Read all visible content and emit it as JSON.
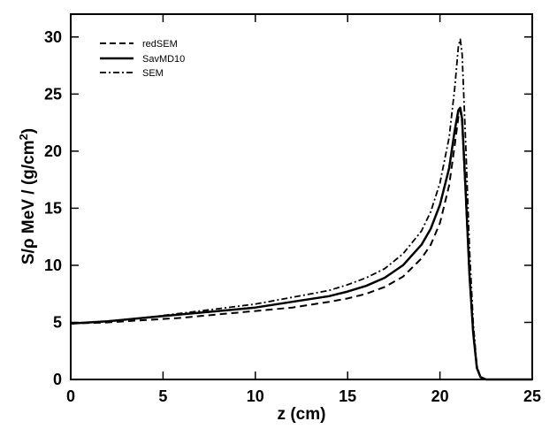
{
  "chart_data": {
    "type": "line",
    "title": "",
    "xlabel": "z  (cm)",
    "ylabel_main": "S/ρ  MeV / (g/cm",
    "ylabel_sup": "2",
    "ylabel_close": ")",
    "xlim": [
      0,
      25
    ],
    "ylim": [
      0,
      32
    ],
    "xticks": [
      0,
      5,
      10,
      15,
      20,
      25
    ],
    "yticks": [
      0,
      5,
      10,
      15,
      20,
      25,
      30
    ],
    "xtick_labels": [
      "0",
      "5",
      "10",
      "15",
      "20",
      "25"
    ],
    "ytick_labels": [
      "0",
      "5",
      "10",
      "15",
      "20",
      "25",
      "30"
    ],
    "grid": false,
    "legend_position": "top-left",
    "series": [
      {
        "name": "redSEM",
        "dash": "dashed",
        "x": [
          0,
          2,
          4,
          6,
          8,
          10,
          12,
          14,
          15,
          16,
          17,
          18,
          19,
          19.5,
          20,
          20.5,
          20.8,
          21.0,
          21.1,
          21.2,
          21.4,
          21.6,
          21.8,
          22.0,
          22.2,
          22.5,
          25
        ],
        "y": [
          4.9,
          5.0,
          5.2,
          5.4,
          5.7,
          6.0,
          6.3,
          6.8,
          7.1,
          7.5,
          8.1,
          9.0,
          10.6,
          11.8,
          13.7,
          17.0,
          20.5,
          23.0,
          23.6,
          22.5,
          16.0,
          9.0,
          4.0,
          1.0,
          0.2,
          0,
          0
        ]
      },
      {
        "name": "SavMD10",
        "dash": "solid",
        "x": [
          0,
          2,
          4,
          6,
          8,
          10,
          12,
          14,
          15,
          16,
          17,
          18,
          19,
          19.5,
          20,
          20.5,
          20.8,
          21.0,
          21.1,
          21.2,
          21.4,
          21.6,
          21.8,
          22.0,
          22.2,
          22.5,
          25
        ],
        "y": [
          4.9,
          5.1,
          5.4,
          5.7,
          6.0,
          6.3,
          6.8,
          7.3,
          7.7,
          8.2,
          8.9,
          10.0,
          11.8,
          13.2,
          15.3,
          18.5,
          21.8,
          23.6,
          23.8,
          22.8,
          16.3,
          9.2,
          4.1,
          1.0,
          0.2,
          0,
          0
        ]
      },
      {
        "name": "SEM",
        "dash": "dashdot",
        "x": [
          0,
          2,
          4,
          6,
          8,
          10,
          12,
          14,
          15,
          16,
          17,
          18,
          19,
          19.5,
          20,
          20.5,
          20.8,
          21.0,
          21.1,
          21.2,
          21.4,
          21.6,
          21.8,
          22.0,
          22.2,
          22.5,
          25
        ],
        "y": [
          4.9,
          5.1,
          5.4,
          5.8,
          6.2,
          6.6,
          7.2,
          7.8,
          8.3,
          8.9,
          9.7,
          11.0,
          13.0,
          14.7,
          17.2,
          21.2,
          25.5,
          29.2,
          29.8,
          28.5,
          20.5,
          11.5,
          5.0,
          1.2,
          0.2,
          0,
          0
        ]
      }
    ]
  }
}
